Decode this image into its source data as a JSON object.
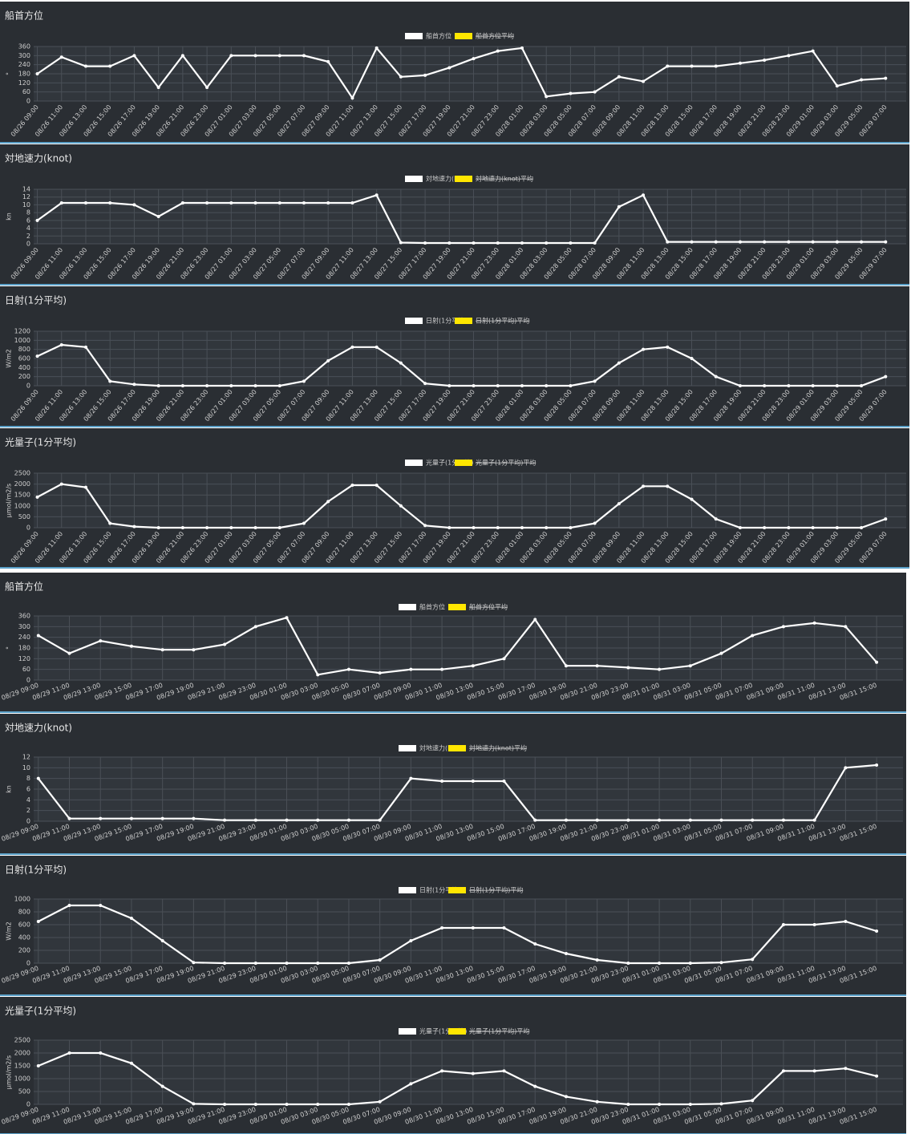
{
  "chart_data": [
    {
      "type": "line",
      "title": "船首方位",
      "y_label": "°",
      "ylim": [
        0,
        360
      ],
      "yticks": [
        0,
        60,
        120,
        180,
        240,
        300,
        360
      ],
      "grid": true,
      "categories": [
        "08/26 09:00",
        "08/26 11:00",
        "08/26 13:00",
        "08/26 15:00",
        "08/26 17:00",
        "08/26 19:00",
        "08/26 21:00",
        "08/26 23:00",
        "08/27 01:00",
        "08/27 03:00",
        "08/27 05:00",
        "08/27 07:00",
        "08/27 09:00",
        "08/27 11:00",
        "08/27 13:00",
        "08/27 15:00",
        "08/27 17:00",
        "08/27 19:00",
        "08/27 21:00",
        "08/27 23:00",
        "08/28 01:00",
        "08/28 03:00",
        "08/28 05:00",
        "08/28 07:00",
        "08/28 09:00",
        "08/28 11:00",
        "08/28 13:00",
        "08/28 15:00",
        "08/28 17:00",
        "08/28 19:00",
        "08/28 21:00",
        "08/28 23:00",
        "08/29 01:00",
        "08/29 03:00",
        "08/29 05:00",
        "08/29 07:00"
      ],
      "series": [
        {
          "name": "船首方位",
          "color": "#ffffff",
          "values": [
            180,
            290,
            230,
            230,
            300,
            90,
            300,
            90,
            300,
            300,
            300,
            300,
            260,
            20,
            350,
            160,
            170,
            220,
            280,
            330,
            350,
            30,
            50,
            60,
            160,
            130,
            230,
            230,
            230,
            250,
            270,
            300,
            330,
            100,
            140,
            150
          ]
        }
      ],
      "hidden_series": [
        {
          "name": "船首方位平均",
          "color": "#ffe600"
        }
      ]
    },
    {
      "type": "line",
      "title": "対地速力(knot)",
      "y_label": "kn",
      "ylim": [
        0,
        14
      ],
      "yticks": [
        0,
        2,
        4,
        6,
        8,
        10,
        12,
        14
      ],
      "grid": true,
      "categories": [
        "08/26 09:00",
        "08/26 11:00",
        "08/26 13:00",
        "08/26 15:00",
        "08/26 17:00",
        "08/26 19:00",
        "08/26 21:00",
        "08/26 23:00",
        "08/27 01:00",
        "08/27 03:00",
        "08/27 05:00",
        "08/27 07:00",
        "08/27 09:00",
        "08/27 11:00",
        "08/27 13:00",
        "08/27 15:00",
        "08/27 17:00",
        "08/27 19:00",
        "08/27 21:00",
        "08/27 23:00",
        "08/28 01:00",
        "08/28 03:00",
        "08/28 05:00",
        "08/28 07:00",
        "08/28 09:00",
        "08/28 11:00",
        "08/28 13:00",
        "08/28 15:00",
        "08/28 17:00",
        "08/28 19:00",
        "08/28 21:00",
        "08/28 23:00",
        "08/29 01:00",
        "08/29 03:00",
        "08/29 05:00",
        "08/29 07:00"
      ],
      "series": [
        {
          "name": "対地速力(knot)",
          "color": "#ffffff",
          "values": [
            6,
            10.5,
            10.5,
            10.5,
            10,
            7,
            10.5,
            10.5,
            10.5,
            10.5,
            10.5,
            10.5,
            10.5,
            10.5,
            12.5,
            0.3,
            0.2,
            0.2,
            0.2,
            0.2,
            0.2,
            0.2,
            0.2,
            0.2,
            9.5,
            12.5,
            0.5,
            0.5,
            0.5,
            0.5,
            0.5,
            0.5,
            0.5,
            0.5,
            0.5,
            0.5
          ]
        }
      ],
      "hidden_series": [
        {
          "name": "対地速力(knot)平均",
          "color": "#ffe600"
        }
      ]
    },
    {
      "type": "line",
      "title": "日射(1分平均)",
      "y_label": "W/m2",
      "ylim": [
        0,
        1200
      ],
      "yticks": [
        0,
        200,
        400,
        600,
        800,
        1000,
        1200
      ],
      "grid": true,
      "categories": [
        "08/26 09:00",
        "08/26 11:00",
        "08/26 13:00",
        "08/26 15:00",
        "08/26 17:00",
        "08/26 19:00",
        "08/26 21:00",
        "08/26 23:00",
        "08/27 01:00",
        "08/27 03:00",
        "08/27 05:00",
        "08/27 07:00",
        "08/27 09:00",
        "08/27 11:00",
        "08/27 13:00",
        "08/27 15:00",
        "08/27 17:00",
        "08/27 19:00",
        "08/27 21:00",
        "08/27 23:00",
        "08/28 01:00",
        "08/28 03:00",
        "08/28 05:00",
        "08/28 07:00",
        "08/28 09:00",
        "08/28 11:00",
        "08/28 13:00",
        "08/28 15:00",
        "08/28 17:00",
        "08/28 19:00",
        "08/28 21:00",
        "08/28 23:00",
        "08/29 01:00",
        "08/29 03:00",
        "08/29 05:00",
        "08/29 07:00"
      ],
      "series": [
        {
          "name": "日射(1分平均)",
          "color": "#ffffff",
          "values": [
            650,
            900,
            850,
            100,
            30,
            0,
            0,
            0,
            0,
            0,
            0,
            100,
            550,
            850,
            850,
            500,
            50,
            0,
            0,
            0,
            0,
            0,
            0,
            100,
            500,
            800,
            850,
            600,
            200,
            0,
            0,
            0,
            0,
            0,
            0,
            200
          ]
        }
      ],
      "hidden_series": [
        {
          "name": "日射(1分平均)平均",
          "color": "#ffe600"
        }
      ]
    },
    {
      "type": "line",
      "title": "光量子(1分平均)",
      "y_label": "μmol/m2/s",
      "ylim": [
        0,
        2500
      ],
      "yticks": [
        0,
        500,
        1000,
        1500,
        2000,
        2500
      ],
      "grid": true,
      "categories": [
        "08/26 09:00",
        "08/26 11:00",
        "08/26 13:00",
        "08/26 15:00",
        "08/26 17:00",
        "08/26 19:00",
        "08/26 21:00",
        "08/26 23:00",
        "08/27 01:00",
        "08/27 03:00",
        "08/27 05:00",
        "08/27 07:00",
        "08/27 09:00",
        "08/27 11:00",
        "08/27 13:00",
        "08/27 15:00",
        "08/27 17:00",
        "08/27 19:00",
        "08/27 21:00",
        "08/27 23:00",
        "08/28 01:00",
        "08/28 03:00",
        "08/28 05:00",
        "08/28 07:00",
        "08/28 09:00",
        "08/28 11:00",
        "08/28 13:00",
        "08/28 15:00",
        "08/28 17:00",
        "08/28 19:00",
        "08/28 21:00",
        "08/28 23:00",
        "08/29 01:00",
        "08/29 03:00",
        "08/29 05:00",
        "08/29 07:00"
      ],
      "series": [
        {
          "name": "光量子(1分平均)",
          "color": "#ffffff",
          "values": [
            1400,
            2000,
            1850,
            200,
            50,
            0,
            0,
            0,
            0,
            0,
            0,
            200,
            1200,
            1950,
            1950,
            1000,
            100,
            0,
            0,
            0,
            0,
            0,
            0,
            200,
            1100,
            1900,
            1900,
            1300,
            400,
            0,
            0,
            0,
            0,
            0,
            0,
            400
          ]
        }
      ],
      "hidden_series": [
        {
          "name": "光量子(1分平均)平均",
          "color": "#ffe600"
        }
      ]
    },
    {
      "type": "line",
      "title": "船首方位",
      "y_label": "°",
      "ylim": [
        0,
        360
      ],
      "yticks": [
        0,
        60,
        120,
        180,
        240,
        300,
        360
      ],
      "grid": true,
      "categories": [
        "08/29 09:00",
        "08/29 11:00",
        "08/29 13:00",
        "08/29 15:00",
        "08/29 17:00",
        "08/29 19:00",
        "08/29 21:00",
        "08/29 23:00",
        "08/30 01:00",
        "08/30 03:00",
        "08/30 05:00",
        "08/30 07:00",
        "08/30 09:00",
        "08/30 11:00",
        "08/30 13:00",
        "08/30 15:00",
        "08/30 17:00",
        "08/30 19:00",
        "08/30 21:00",
        "08/30 23:00",
        "08/31 01:00",
        "08/31 03:00",
        "08/31 05:00",
        "08/31 07:00",
        "08/31 09:00",
        "08/31 11:00",
        "08/31 13:00",
        "08/31 15:00"
      ],
      "series": [
        {
          "name": "船首方位",
          "color": "#ffffff",
          "values": [
            250,
            150,
            220,
            190,
            170,
            170,
            200,
            300,
            350,
            30,
            60,
            40,
            60,
            60,
            80,
            120,
            340,
            80,
            80,
            70,
            60,
            80,
            150,
            250,
            300,
            320,
            300,
            100
          ]
        }
      ],
      "hidden_series": [
        {
          "name": "船首方位平均",
          "color": "#ffe600"
        }
      ]
    },
    {
      "type": "line",
      "title": "対地速力(knot)",
      "y_label": "kn",
      "ylim": [
        0,
        12
      ],
      "yticks": [
        0,
        2,
        4,
        6,
        8,
        10,
        12
      ],
      "grid": true,
      "categories": [
        "08/29 09:00",
        "08/29 11:00",
        "08/29 13:00",
        "08/29 15:00",
        "08/29 17:00",
        "08/29 19:00",
        "08/29 21:00",
        "08/29 23:00",
        "08/30 01:00",
        "08/30 03:00",
        "08/30 05:00",
        "08/30 07:00",
        "08/30 09:00",
        "08/30 11:00",
        "08/30 13:00",
        "08/30 15:00",
        "08/30 17:00",
        "08/30 19:00",
        "08/30 21:00",
        "08/30 23:00",
        "08/31 01:00",
        "08/31 03:00",
        "08/31 05:00",
        "08/31 07:00",
        "08/31 09:00",
        "08/31 11:00",
        "08/31 13:00",
        "08/31 15:00"
      ],
      "series": [
        {
          "name": "対地速力(knot)",
          "color": "#ffffff",
          "values": [
            8,
            0.5,
            0.5,
            0.5,
            0.5,
            0.5,
            0.2,
            0.2,
            0.2,
            0.2,
            0.2,
            0.2,
            8,
            7.5,
            7.5,
            7.5,
            0.2,
            0.2,
            0.2,
            0.2,
            0.2,
            0.2,
            0.2,
            0.2,
            0.2,
            0.2,
            10,
            10.5
          ]
        }
      ],
      "hidden_series": [
        {
          "name": "対地速力(knot)平均",
          "color": "#ffe600"
        }
      ]
    },
    {
      "type": "line",
      "title": "日射(1分平均)",
      "y_label": "W/m2",
      "ylim": [
        0,
        1000
      ],
      "yticks": [
        0,
        200,
        400,
        600,
        800,
        1000
      ],
      "grid": true,
      "categories": [
        "08/29 09:00",
        "08/29 11:00",
        "08/29 13:00",
        "08/29 15:00",
        "08/29 17:00",
        "08/29 19:00",
        "08/29 21:00",
        "08/29 23:00",
        "08/30 01:00",
        "08/30 03:00",
        "08/30 05:00",
        "08/30 07:00",
        "08/30 09:00",
        "08/30 11:00",
        "08/30 13:00",
        "08/30 15:00",
        "08/30 17:00",
        "08/30 19:00",
        "08/30 21:00",
        "08/30 23:00",
        "08/31 01:00",
        "08/31 03:00",
        "08/31 05:00",
        "08/31 07:00",
        "08/31 09:00",
        "08/31 11:00",
        "08/31 13:00",
        "08/31 15:00"
      ],
      "series": [
        {
          "name": "日射(1分平均)",
          "color": "#ffffff",
          "values": [
            650,
            900,
            900,
            700,
            350,
            10,
            0,
            0,
            0,
            0,
            0,
            50,
            350,
            550,
            550,
            550,
            300,
            150,
            50,
            0,
            0,
            0,
            10,
            60,
            600,
            600,
            650,
            500
          ]
        }
      ],
      "hidden_series": [
        {
          "name": "日射(1分平均)平均",
          "color": "#ffe600"
        }
      ]
    },
    {
      "type": "line",
      "title": "光量子(1分平均)",
      "y_label": "μmol/m2/s",
      "ylim": [
        0,
        2500
      ],
      "yticks": [
        0,
        500,
        1000,
        1500,
        2000,
        2500
      ],
      "grid": true,
      "categories": [
        "08/29 09:00",
        "08/29 11:00",
        "08/29 13:00",
        "08/29 15:00",
        "08/29 17:00",
        "08/29 19:00",
        "08/29 21:00",
        "08/29 23:00",
        "08/30 01:00",
        "08/30 03:00",
        "08/30 05:00",
        "08/30 07:00",
        "08/30 09:00",
        "08/30 11:00",
        "08/30 13:00",
        "08/30 15:00",
        "08/30 17:00",
        "08/30 19:00",
        "08/30 21:00",
        "08/30 23:00",
        "08/31 01:00",
        "08/31 03:00",
        "08/31 05:00",
        "08/31 07:00",
        "08/31 09:00",
        "08/31 11:00",
        "08/31 13:00",
        "08/31 15:00"
      ],
      "series": [
        {
          "name": "光量子(1分平均)",
          "color": "#ffffff",
          "values": [
            1500,
            2000,
            2000,
            1600,
            700,
            20,
            0,
            0,
            0,
            0,
            0,
            100,
            800,
            1300,
            1200,
            1300,
            700,
            300,
            100,
            0,
            0,
            0,
            20,
            150,
            1300,
            1300,
            1400,
            1100
          ]
        }
      ],
      "hidden_series": [
        {
          "name": "光量子(1分平均)平均",
          "color": "#ffe600"
        }
      ]
    }
  ]
}
